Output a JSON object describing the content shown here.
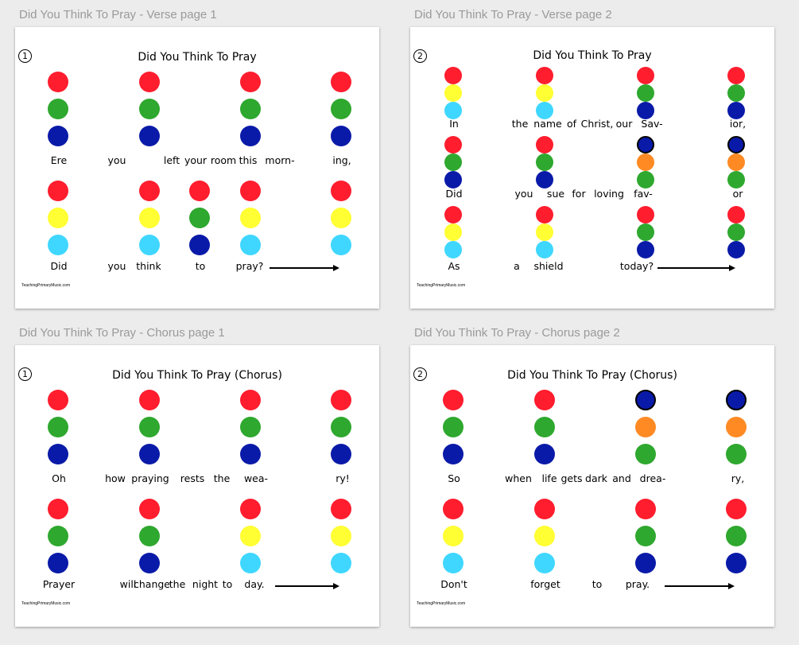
{
  "colors": {
    "red": "#ff1d2e",
    "green": "#2ea82e",
    "blue": "#0a1aa8",
    "yellow": "#ffff33",
    "cyan": "#3fd7ff",
    "orange": "#ff8a24"
  },
  "cards": [
    {
      "label": "Did You Think To Pray - Verse page 1",
      "number": "①",
      "title": "Did You Think To Pray",
      "credit": "TeachingPrimaryMusic.com",
      "rows": [
        {
          "columns": [
            {
              "dots": [
                "red",
                "green",
                "blue"
              ]
            },
            {
              "dots": [
                "red",
                "green",
                "blue"
              ]
            },
            {
              "dots": [
                "red",
                "green",
                "blue"
              ]
            },
            {
              "dots": [
                "red",
                "green",
                "blue"
              ]
            }
          ],
          "words": [
            "Ere",
            "you",
            "left",
            "your",
            "room",
            "this",
            "morn-",
            "ing,"
          ]
        },
        {
          "columns": [
            {
              "dots": [
                "red",
                "yellow",
                "cyan"
              ]
            },
            {
              "dots": [
                "red",
                "yellow",
                "cyan"
              ]
            },
            {
              "dots": [
                "red",
                "green",
                "blue"
              ]
            },
            {
              "dots": [
                "red",
                "yellow",
                "cyan"
              ]
            },
            {
              "dots": [
                "red",
                "yellow",
                "cyan"
              ]
            }
          ],
          "words": [
            "Did",
            "you",
            "think",
            "to",
            "pray?"
          ]
        }
      ]
    },
    {
      "label": "Did You Think To Pray - Verse page 2",
      "number": "②",
      "title": "Did You Think To Pray",
      "credit": "TeachingPrimaryMusic.com",
      "rows": [
        {
          "columns": [
            {
              "dots": [
                "red",
                "yellow",
                "cyan"
              ]
            },
            {
              "dots": [
                "red",
                "yellow",
                "cyan"
              ]
            },
            {
              "dots": [
                "red",
                "green",
                "blue"
              ]
            },
            {
              "dots": [
                "red",
                "green",
                "blue"
              ]
            }
          ],
          "words": [
            "In",
            "the",
            "name",
            "of",
            "Christ,",
            "our",
            "Sav-",
            "ior,"
          ]
        },
        {
          "columns": [
            {
              "dots": [
                "red",
                "green",
                "blue"
              ]
            },
            {
              "dots": [
                "red",
                "green",
                "blue"
              ]
            },
            {
              "dots": [
                "blue-ring",
                "orange",
                "green"
              ]
            },
            {
              "dots": [
                "blue-ring",
                "orange",
                "green"
              ]
            }
          ],
          "words": [
            "Did",
            "you",
            "sue",
            "for",
            "loving",
            "fav-",
            "or"
          ]
        },
        {
          "columns": [
            {
              "dots": [
                "red",
                "yellow",
                "cyan"
              ]
            },
            {
              "dots": [
                "red",
                "yellow",
                "cyan"
              ]
            },
            {
              "dots": [
                "red",
                "green",
                "blue"
              ]
            },
            {
              "dots": [
                "red",
                "green",
                "blue"
              ]
            }
          ],
          "words": [
            "As",
            "a",
            "shield",
            "today?"
          ]
        }
      ]
    },
    {
      "label": "Did You Think To Pray - Chorus page 1",
      "number": "①",
      "title": "Did You Think To Pray (Chorus)",
      "credit": "TeachingPrimaryMusic.com",
      "rows": [
        {
          "columns": [
            {
              "dots": [
                "red",
                "green",
                "blue"
              ]
            },
            {
              "dots": [
                "red",
                "green",
                "blue"
              ]
            },
            {
              "dots": [
                "red",
                "green",
                "blue"
              ]
            },
            {
              "dots": [
                "red",
                "green",
                "blue"
              ]
            }
          ],
          "words": [
            "Oh",
            "how",
            "praying",
            "rests",
            "the",
            "wea-",
            "ry!"
          ]
        },
        {
          "columns": [
            {
              "dots": [
                "red",
                "green",
                "blue"
              ]
            },
            {
              "dots": [
                "red",
                "green",
                "blue"
              ]
            },
            {
              "dots": [
                "red",
                "yellow",
                "cyan"
              ]
            },
            {
              "dots": [
                "red",
                "yellow",
                "cyan"
              ]
            }
          ],
          "words": [
            "Prayer",
            "will",
            "change",
            "the",
            "night",
            "to",
            "day."
          ]
        }
      ]
    },
    {
      "label": "Did You Think To Pray - Chorus page 2",
      "number": "②",
      "title": "Did You Think To Pray (Chorus)",
      "credit": "TeachingPrimaryMusic.com",
      "rows": [
        {
          "columns": [
            {
              "dots": [
                "red",
                "green",
                "blue"
              ]
            },
            {
              "dots": [
                "red",
                "green",
                "blue"
              ]
            },
            {
              "dots": [
                "blue-ring",
                "orange",
                "green"
              ]
            },
            {
              "dots": [
                "blue-ring",
                "orange",
                "green"
              ]
            }
          ],
          "words": [
            "So",
            "when",
            "life",
            "gets",
            "dark",
            "and",
            "drea-",
            "ry,"
          ]
        },
        {
          "columns": [
            {
              "dots": [
                "red",
                "yellow",
                "cyan"
              ]
            },
            {
              "dots": [
                "red",
                "yellow",
                "cyan"
              ]
            },
            {
              "dots": [
                "red",
                "green",
                "blue"
              ]
            },
            {
              "dots": [
                "red",
                "green",
                "blue"
              ]
            }
          ],
          "words": [
            "Don't",
            "forget",
            "to",
            "pray."
          ]
        }
      ]
    }
  ]
}
